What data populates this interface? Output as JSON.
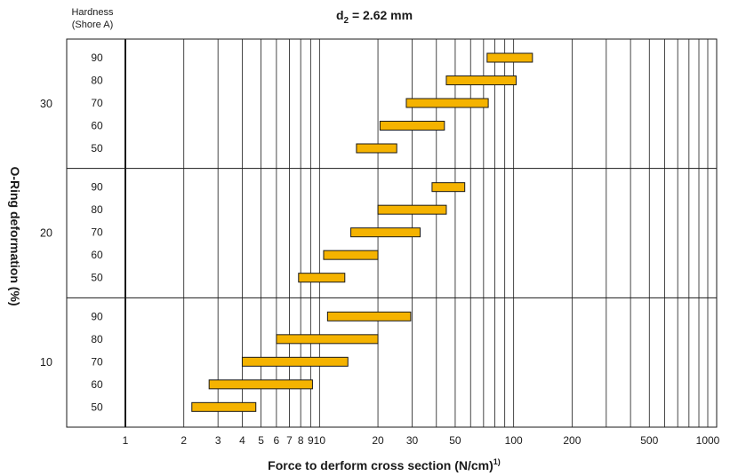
{
  "chart_data": {
    "type": "bar",
    "subtype": "floating-range (log x-axis)",
    "title_prefix": "d",
    "title_subscript": "2",
    "title_suffix": " = 2.62 mm",
    "hardness_header_line1": "Hardness",
    "hardness_header_line2": "(Shore A)",
    "xlabel_main": "Force to derform cross section (N/cm)",
    "xlabel_sup": "1)",
    "ylabel": "O-Ring deformation (%)",
    "x_scale": "log",
    "xlim": [
      1,
      1000
    ],
    "x_tick_values": [
      1,
      2,
      3,
      4,
      5,
      6,
      7,
      8,
      9,
      10,
      20,
      30,
      40,
      50,
      60,
      70,
      80,
      90,
      100,
      200,
      300,
      400,
      500,
      600,
      700,
      800,
      900,
      1000
    ],
    "x_tick_labels": [
      {
        "value": 1,
        "label": "1"
      },
      {
        "value": 2,
        "label": "2"
      },
      {
        "value": 3,
        "label": "3"
      },
      {
        "value": 4,
        "label": "4"
      },
      {
        "value": 5,
        "label": "5"
      },
      {
        "value": 6,
        "label": "6"
      },
      {
        "value": 7,
        "label": "7"
      },
      {
        "value": 8,
        "label": "8"
      },
      {
        "value": 9,
        "label": "9"
      },
      {
        "value": 10,
        "label": "10"
      },
      {
        "value": 20,
        "label": "20"
      },
      {
        "value": 30,
        "label": "30"
      },
      {
        "value": 50,
        "label": "50"
      },
      {
        "value": 100,
        "label": "100"
      },
      {
        "value": 200,
        "label": "200"
      },
      {
        "value": 500,
        "label": "500"
      },
      {
        "value": 1000,
        "label": "1000"
      }
    ],
    "groups": [
      {
        "deformation": "30",
        "bars": [
          {
            "hardness": "90",
            "min": 73,
            "max": 125
          },
          {
            "hardness": "80",
            "min": 45,
            "max": 103
          },
          {
            "hardness": "70",
            "min": 28,
            "max": 74
          },
          {
            "hardness": "60",
            "min": 20.5,
            "max": 44
          },
          {
            "hardness": "50",
            "min": 15.5,
            "max": 25
          }
        ]
      },
      {
        "deformation": "20",
        "bars": [
          {
            "hardness": "90",
            "min": 38,
            "max": 56
          },
          {
            "hardness": "80",
            "min": 20,
            "max": 45
          },
          {
            "hardness": "70",
            "min": 14.5,
            "max": 33
          },
          {
            "hardness": "60",
            "min": 10.5,
            "max": 20
          },
          {
            "hardness": "50",
            "min": 7.8,
            "max": 13.5
          }
        ]
      },
      {
        "deformation": "10",
        "bars": [
          {
            "hardness": "90",
            "min": 11,
            "max": 29.5
          },
          {
            "hardness": "80",
            "min": 6,
            "max": 20
          },
          {
            "hardness": "70",
            "min": 4,
            "max": 14
          },
          {
            "hardness": "60",
            "min": 2.7,
            "max": 9.2
          },
          {
            "hardness": "50",
            "min": 2.2,
            "max": 4.7
          }
        ]
      }
    ],
    "bar_color": "#f5b300",
    "bar_edge_color": "#1a1a1a",
    "grid": true
  }
}
